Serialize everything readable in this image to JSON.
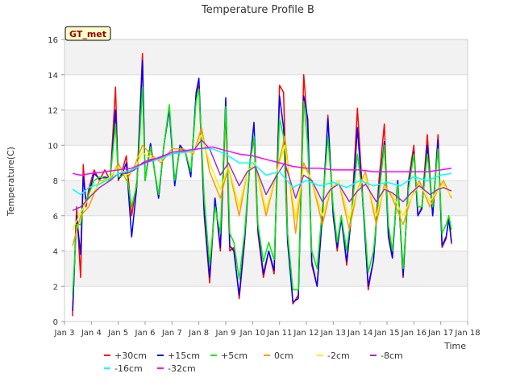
{
  "chart_data": {
    "type": "line",
    "title": "Temperature Profile B",
    "xlabel": "Time",
    "ylabel": "Temperature(C)",
    "badge": "GT_met",
    "ylim": [
      0,
      16
    ],
    "yticks": [
      0,
      2,
      4,
      6,
      8,
      10,
      12,
      14,
      16
    ],
    "xlim": [
      3,
      18
    ],
    "xticks": [
      {
        "v": 3,
        "label": "Jan 3"
      },
      {
        "v": 4,
        "label": "Jan 4"
      },
      {
        "v": 5,
        "label": "Jan 5"
      },
      {
        "v": 6,
        "label": "Jan 6"
      },
      {
        "v": 7,
        "label": "Jan 7"
      },
      {
        "v": 8,
        "label": "Jan 8"
      },
      {
        "v": 9,
        "label": "Jan 9"
      },
      {
        "v": 10,
        "label": "Jan 10"
      },
      {
        "v": 11,
        "label": "Jan 11"
      },
      {
        "v": 12,
        "label": "Jan 12"
      },
      {
        "v": 13,
        "label": "Jan 13"
      },
      {
        "v": 14,
        "label": "Jan 14"
      },
      {
        "v": 15,
        "label": "Jan 15"
      },
      {
        "v": 16,
        "label": "Jan 16"
      },
      {
        "v": 17,
        "label": "Jan 17"
      },
      {
        "v": 18,
        "label": "Jan 18"
      }
    ],
    "grid": true,
    "legend": "bottom",
    "series": [
      {
        "name": "+30cm",
        "color": "#ff0000",
        "x": [
          3.3,
          3.45,
          3.6,
          3.7,
          3.8,
          3.9,
          4.1,
          4.3,
          4.5,
          4.7,
          4.9,
          5.0,
          5.1,
          5.3,
          5.5,
          5.7,
          5.9,
          6.0,
          6.2,
          6.5,
          6.7,
          6.9,
          7.1,
          7.3,
          7.5,
          7.7,
          7.9,
          8.0,
          8.2,
          8.4,
          8.6,
          8.8,
          9.0,
          9.15,
          9.3,
          9.5,
          9.7,
          9.9,
          10.05,
          10.2,
          10.4,
          10.6,
          10.8,
          11.0,
          11.15,
          11.3,
          11.5,
          11.7,
          11.9,
          12.05,
          12.2,
          12.4,
          12.6,
          12.8,
          13.0,
          13.15,
          13.3,
          13.5,
          13.7,
          13.9,
          14.1,
          14.3,
          14.5,
          14.7,
          14.9,
          15.05,
          15.2,
          15.4,
          15.6,
          15.8,
          16.0,
          16.15,
          16.3,
          16.5,
          16.7,
          16.9,
          17.05,
          17.2,
          17.3,
          17.4
        ],
        "values": [
          0.3,
          6.5,
          2.5,
          8.9,
          6.5,
          7.5,
          8.6,
          8.0,
          8.6,
          8.0,
          13.3,
          8.0,
          8.3,
          9.4,
          6.0,
          8.0,
          15.2,
          8.0,
          10.1,
          7.0,
          10.0,
          12.1,
          7.8,
          10.0,
          9.6,
          8.3,
          12.9,
          13.4,
          6.0,
          2.2,
          7.0,
          4.0,
          12.0,
          4.0,
          4.2,
          1.3,
          4.5,
          9.0,
          10.4,
          5.0,
          2.5,
          4.0,
          2.7,
          13.4,
          13.0,
          5.0,
          1.0,
          1.5,
          14.0,
          11.0,
          3.2,
          2.0,
          6.0,
          11.7,
          6.0,
          4.0,
          6.0,
          3.2,
          6.5,
          12.1,
          7.0,
          1.8,
          3.5,
          8.0,
          11.2,
          5.0,
          3.8,
          8.0,
          2.5,
          8.0,
          10.0,
          6.0,
          6.5,
          10.6,
          6.0,
          10.6,
          4.2,
          4.7,
          6.0,
          4.4
        ]
      },
      {
        "name": "+15cm",
        "color": "#0000ff",
        "x": [
          3.3,
          3.45,
          3.6,
          3.7,
          3.8,
          3.9,
          4.1,
          4.3,
          4.5,
          4.7,
          4.9,
          5.0,
          5.1,
          5.3,
          5.5,
          5.7,
          5.9,
          6.0,
          6.2,
          6.5,
          6.7,
          6.9,
          7.1,
          7.3,
          7.5,
          7.7,
          7.9,
          8.0,
          8.2,
          8.4,
          8.6,
          8.8,
          9.0,
          9.15,
          9.3,
          9.5,
          9.7,
          9.9,
          10.05,
          10.2,
          10.4,
          10.6,
          10.8,
          11.0,
          11.15,
          11.3,
          11.5,
          11.7,
          11.9,
          12.05,
          12.2,
          12.4,
          12.6,
          12.8,
          13.0,
          13.15,
          13.3,
          13.5,
          13.7,
          13.9,
          14.1,
          14.3,
          14.5,
          14.7,
          14.9,
          15.05,
          15.2,
          15.4,
          15.6,
          15.8,
          16.0,
          16.15,
          16.3,
          16.5,
          16.7,
          16.9,
          17.05,
          17.2,
          17.3,
          17.4
        ],
        "values": [
          0.6,
          6.0,
          3.8,
          8.2,
          6.8,
          7.2,
          8.4,
          8.1,
          8.2,
          8.1,
          12.0,
          8.1,
          8.2,
          9.0,
          4.8,
          7.8,
          14.8,
          8.0,
          10.1,
          7.0,
          10.0,
          12.0,
          7.7,
          10.0,
          9.6,
          8.2,
          13.0,
          13.8,
          6.2,
          2.5,
          7.0,
          4.2,
          12.7,
          4.3,
          4.0,
          1.5,
          4.6,
          9.0,
          11.3,
          5.2,
          2.7,
          4.0,
          2.9,
          12.8,
          11.0,
          4.5,
          1.1,
          1.3,
          12.8,
          11.5,
          3.4,
          2.0,
          6.2,
          11.5,
          6.0,
          4.2,
          5.8,
          3.4,
          6.3,
          11.0,
          6.8,
          2.0,
          3.5,
          7.5,
          10.2,
          4.8,
          3.6,
          8.0,
          2.6,
          7.8,
          9.6,
          6.0,
          6.4,
          10.0,
          6.0,
          10.3,
          4.3,
          4.8,
          5.8,
          4.5
        ]
      },
      {
        "name": "+5cm",
        "color": "#00ee00",
        "x": [
          3.3,
          3.45,
          3.6,
          3.7,
          3.8,
          3.9,
          4.1,
          4.3,
          4.5,
          4.7,
          4.9,
          5.0,
          5.1,
          5.3,
          5.5,
          5.7,
          5.9,
          6.0,
          6.2,
          6.5,
          6.7,
          6.9,
          7.1,
          7.3,
          7.5,
          7.7,
          7.9,
          8.0,
          8.2,
          8.4,
          8.6,
          8.8,
          9.0,
          9.15,
          9.3,
          9.5,
          9.7,
          9.9,
          10.05,
          10.2,
          10.4,
          10.6,
          10.8,
          11.0,
          11.15,
          11.3,
          11.5,
          11.7,
          11.9,
          12.05,
          12.2,
          12.4,
          12.6,
          12.8,
          13.0,
          13.15,
          13.3,
          13.5,
          13.7,
          13.9,
          14.1,
          14.3,
          14.5,
          14.7,
          14.9,
          15.05,
          15.2,
          15.4,
          15.6,
          15.8,
          16.0,
          16.15,
          16.3,
          16.5,
          16.7,
          16.9,
          17.05,
          17.2,
          17.3,
          17.4
        ],
        "values": [
          1.5,
          5.5,
          5.5,
          6.5,
          6.9,
          7.2,
          8.0,
          8.2,
          8.1,
          8.1,
          11.2,
          8.2,
          8.2,
          8.5,
          6.5,
          7.8,
          13.3,
          8.0,
          9.9,
          7.2,
          10.0,
          12.3,
          8.0,
          9.8,
          9.6,
          8.5,
          12.5,
          13.2,
          7.0,
          3.2,
          6.5,
          5.0,
          12.2,
          5.0,
          4.5,
          2.4,
          5.0,
          9.0,
          10.5,
          5.5,
          3.4,
          4.5,
          3.5,
          11.5,
          10.5,
          5.0,
          1.8,
          1.8,
          12.5,
          10.0,
          4.0,
          3.0,
          6.5,
          10.5,
          6.5,
          4.5,
          6.0,
          4.0,
          6.5,
          9.5,
          7.0,
          2.8,
          4.0,
          7.2,
          10.0,
          5.5,
          4.0,
          7.8,
          3.0,
          7.5,
          9.5,
          6.5,
          6.5,
          9.5,
          6.5,
          9.8,
          5.0,
          5.5,
          6.0,
          5.2
        ]
      },
      {
        "name": "0cm",
        "color": "#ff9900",
        "x": [
          3.3,
          3.6,
          3.9,
          4.3,
          4.7,
          5.0,
          5.3,
          5.6,
          5.9,
          6.2,
          6.6,
          7.0,
          7.4,
          7.8,
          8.1,
          8.4,
          8.8,
          9.1,
          9.5,
          9.8,
          10.1,
          10.5,
          10.9,
          11.2,
          11.6,
          11.9,
          12.2,
          12.6,
          12.9,
          13.2,
          13.6,
          13.9,
          14.2,
          14.6,
          14.9,
          15.2,
          15.6,
          15.9,
          16.2,
          16.6,
          16.9,
          17.1,
          17.4
        ],
        "values": [
          4.3,
          6.0,
          6.5,
          8.0,
          8.0,
          9.0,
          8.0,
          8.8,
          10.0,
          9.5,
          9.0,
          9.8,
          9.8,
          9.5,
          11.0,
          8.5,
          7.0,
          8.8,
          6.0,
          8.5,
          9.0,
          6.0,
          8.5,
          10.5,
          5.0,
          9.0,
          8.0,
          5.5,
          7.5,
          8.0,
          5.2,
          7.5,
          8.5,
          5.5,
          7.8,
          7.0,
          5.5,
          7.0,
          8.0,
          6.5,
          7.5,
          8.0,
          7.0
        ]
      },
      {
        "name": "-2cm",
        "color": "#ffee00",
        "x": [
          3.3,
          3.6,
          3.9,
          4.3,
          4.7,
          5.0,
          5.3,
          5.6,
          5.9,
          6.2,
          6.6,
          7.0,
          7.4,
          7.8,
          8.1,
          8.4,
          8.8,
          9.1,
          9.5,
          9.8,
          10.1,
          10.5,
          10.9,
          11.2,
          11.6,
          11.9,
          12.2,
          12.6,
          12.9,
          13.2,
          13.6,
          13.9,
          14.2,
          14.6,
          14.9,
          15.2,
          15.6,
          15.9,
          16.2,
          16.6,
          16.9,
          17.1,
          17.4
        ],
        "values": [
          5.2,
          6.2,
          7.0,
          7.8,
          8.2,
          8.8,
          8.3,
          8.6,
          9.6,
          9.3,
          9.2,
          9.6,
          9.6,
          9.6,
          10.6,
          9.0,
          7.5,
          8.8,
          6.5,
          8.5,
          9.0,
          6.3,
          8.5,
          10.0,
          5.8,
          8.8,
          8.0,
          6.0,
          7.5,
          8.0,
          5.8,
          7.5,
          8.2,
          6.0,
          7.6,
          7.2,
          6.0,
          7.0,
          7.8,
          6.8,
          7.5,
          7.8,
          7.1
        ]
      },
      {
        "name": "-8cm",
        "color": "#9933cc",
        "x": [
          3.3,
          3.6,
          3.9,
          4.3,
          4.7,
          5.0,
          5.3,
          5.6,
          5.9,
          6.2,
          6.6,
          7.0,
          7.4,
          7.8,
          8.1,
          8.4,
          8.8,
          9.1,
          9.5,
          9.8,
          10.1,
          10.5,
          10.9,
          11.2,
          11.6,
          11.9,
          12.2,
          12.6,
          12.9,
          13.2,
          13.6,
          13.9,
          14.2,
          14.6,
          14.9,
          15.2,
          15.6,
          15.9,
          16.2,
          16.6,
          16.9,
          17.1,
          17.4
        ],
        "values": [
          6.3,
          6.5,
          7.0,
          7.6,
          8.0,
          8.4,
          8.4,
          8.6,
          9.0,
          9.2,
          9.3,
          9.5,
          9.6,
          9.7,
          10.3,
          9.8,
          8.3,
          9.0,
          7.7,
          8.5,
          8.8,
          7.2,
          8.3,
          9.0,
          7.0,
          8.3,
          8.0,
          6.8,
          7.5,
          7.8,
          6.8,
          7.4,
          7.8,
          6.8,
          7.5,
          7.3,
          6.8,
          7.3,
          7.7,
          7.2,
          7.5,
          7.6,
          7.4
        ]
      },
      {
        "name": "-16cm",
        "color": "#00ffff",
        "x": [
          3.3,
          3.6,
          3.9,
          4.3,
          4.7,
          5.0,
          5.5,
          6.0,
          6.5,
          7.0,
          7.5,
          8.0,
          8.5,
          9.0,
          9.5,
          10.0,
          10.5,
          11.0,
          11.5,
          12.0,
          12.5,
          13.0,
          13.5,
          14.0,
          14.5,
          15.0,
          15.5,
          16.0,
          16.5,
          17.0,
          17.4
        ],
        "values": [
          7.5,
          7.2,
          7.6,
          7.8,
          8.1,
          8.4,
          8.6,
          9.0,
          9.2,
          9.5,
          9.6,
          9.8,
          9.8,
          9.5,
          9.0,
          9.0,
          8.3,
          8.5,
          7.6,
          8.0,
          7.7,
          7.9,
          7.6,
          8.0,
          7.7,
          7.9,
          7.7,
          8.2,
          8.0,
          8.3,
          8.4
        ]
      },
      {
        "name": "-32cm",
        "color": "#ff00ff",
        "x": [
          3.3,
          3.6,
          4.0,
          4.5,
          5.0,
          5.5,
          6.0,
          6.5,
          7.0,
          7.5,
          8.0,
          8.5,
          9.0,
          9.5,
          10.0,
          10.5,
          11.0,
          11.5,
          12.0,
          12.5,
          13.0,
          13.5,
          14.0,
          14.5,
          15.0,
          15.5,
          16.0,
          16.5,
          17.0,
          17.4
        ],
        "values": [
          8.4,
          8.3,
          8.4,
          8.5,
          8.6,
          8.7,
          9.0,
          9.3,
          9.6,
          9.7,
          9.8,
          9.9,
          9.7,
          9.5,
          9.4,
          9.2,
          9.0,
          8.8,
          8.7,
          8.7,
          8.6,
          8.6,
          8.6,
          8.5,
          8.5,
          8.5,
          8.5,
          8.5,
          8.6,
          8.7
        ]
      }
    ]
  }
}
